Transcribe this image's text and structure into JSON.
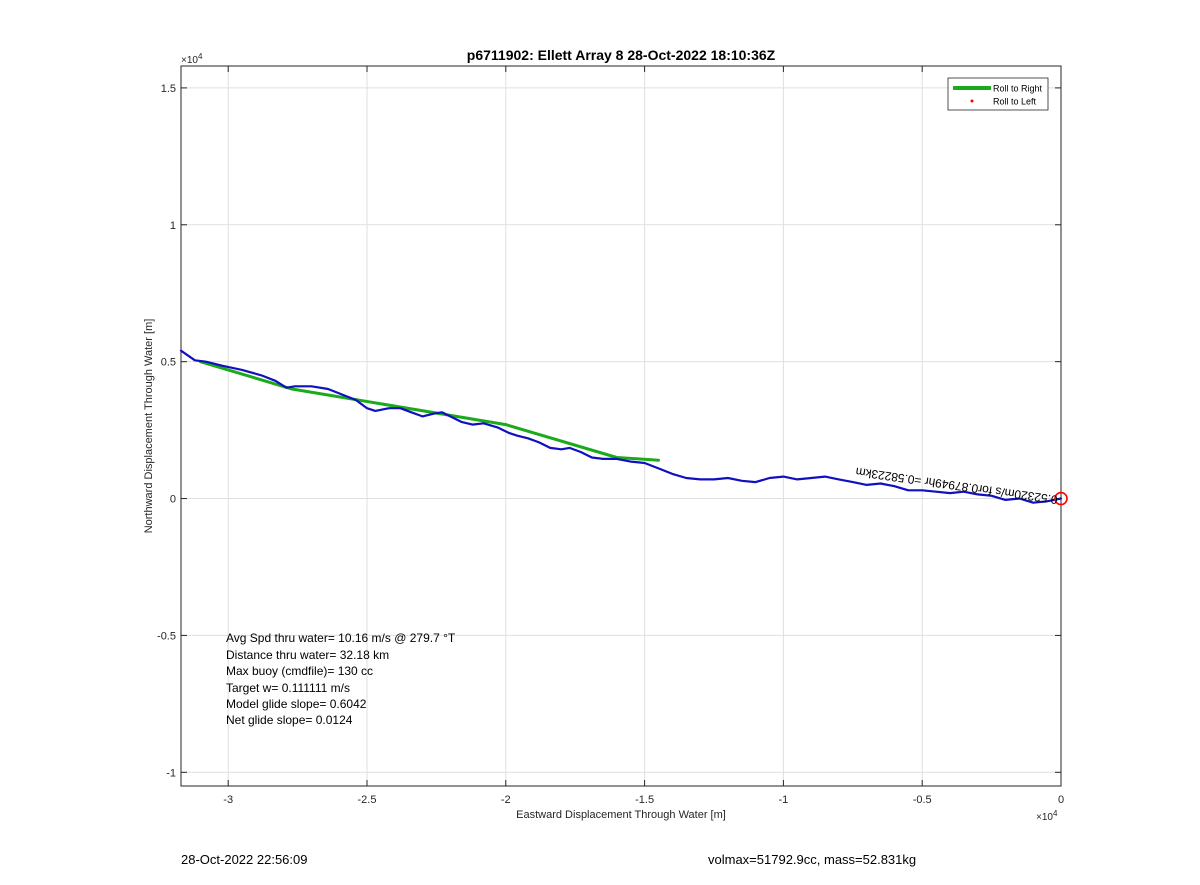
{
  "chart_data": {
    "type": "line",
    "title": "p6711902: Ellett Array 8 28-Oct-2022 18:10:36Z",
    "xlabel": "Eastward Displacement Through Water [m]",
    "ylabel": "Northward Displacement Through Water [m]",
    "xlim": [
      -31700,
      0
    ],
    "ylim": [
      -10500,
      15800
    ],
    "x_ticks": [
      -30000,
      -25000,
      -20000,
      -15000,
      -10000,
      -5000,
      0
    ],
    "x_tick_labels": [
      "-3",
      "-2.5",
      "-2",
      "-1.5",
      "-1",
      "-0.5",
      "0"
    ],
    "y_ticks": [
      -10000,
      -5000,
      0,
      5000,
      10000,
      15000
    ],
    "y_tick_labels": [
      "-1",
      "-0.5",
      "0",
      "0.5",
      "1",
      "1.5"
    ],
    "x_exponent_label": "×10",
    "x_exponent_power": "4",
    "y_exponent_label": "×10",
    "y_exponent_power": "4",
    "grid": true,
    "legend_position": "top-right",
    "legend": [
      {
        "label": "Roll to Right",
        "color": "#1aaa1a",
        "style": "line"
      },
      {
        "label": "Roll to Left",
        "color": "#ff0000",
        "style": "dot"
      }
    ],
    "series": [
      {
        "name": "Roll to Right",
        "color": "#1aaa1a",
        "x": [
          -31000,
          -27700,
          -20000,
          -16000,
          -14500
        ],
        "y": [
          5000,
          4000,
          2700,
          1500,
          1400
        ]
      },
      {
        "color": "#1010c0",
        "x": [
          -31700,
          -31200,
          -30800,
          -30200,
          -29500,
          -28800,
          -28300,
          -27900,
          -27600,
          -27000,
          -26400,
          -25900,
          -25400,
          -25000,
          -24700,
          -24200,
          -23800,
          -23400,
          -23000,
          -22600,
          -22300,
          -22000,
          -21600,
          -21200,
          -20800,
          -20300,
          -19900,
          -19600,
          -19200,
          -18800,
          -18400,
          -18000,
          -17700,
          -17300,
          -16900,
          -16500,
          -16000,
          -15500,
          -15000,
          -14500,
          -14000,
          -13500,
          -13000,
          -12500,
          -12000,
          -11500,
          -11000,
          -10500,
          -10000,
          -9500,
          -9000,
          -8500,
          -8000,
          -7500,
          -7000,
          -6500,
          -6000,
          -5500,
          -5000,
          -4500,
          -4000,
          -3500,
          -3000,
          -2500,
          -2000,
          -1500,
          -1000,
          -500,
          0
        ],
        "y": [
          5400,
          5050,
          5000,
          4850,
          4700,
          4500,
          4300,
          4050,
          4100,
          4100,
          4000,
          3800,
          3600,
          3300,
          3200,
          3300,
          3300,
          3150,
          3000,
          3100,
          3150,
          3000,
          2800,
          2700,
          2750,
          2600,
          2400,
          2300,
          2200,
          2050,
          1850,
          1800,
          1850,
          1700,
          1500,
          1450,
          1450,
          1350,
          1300,
          1100,
          900,
          750,
          700,
          700,
          750,
          650,
          600,
          750,
          800,
          700,
          750,
          800,
          700,
          600,
          500,
          550,
          450,
          300,
          300,
          250,
          200,
          250,
          150,
          100,
          -50,
          0,
          -150,
          -100,
          0
        ]
      }
    ],
    "end_marker": {
      "x": 0,
      "y": 0,
      "color": "#ff0000"
    },
    "rotated_annotation": "0.52320m/s for0.87949hr =0.58223km",
    "text_box": [
      "Avg Spd thru water= 10.16 m/s @ 279.7 °T",
      "Distance thru water= 32.18 km",
      "Max buoy (cmdfile)= 130 cc",
      "Target w= 0.111111 m/s",
      "Model glide slope= 0.6042",
      "Net glide slope= 0.0124"
    ]
  },
  "footer": {
    "left": "28-Oct-2022 22:56:09",
    "right": "volmax=51792.9cc, mass=52.831kg"
  }
}
